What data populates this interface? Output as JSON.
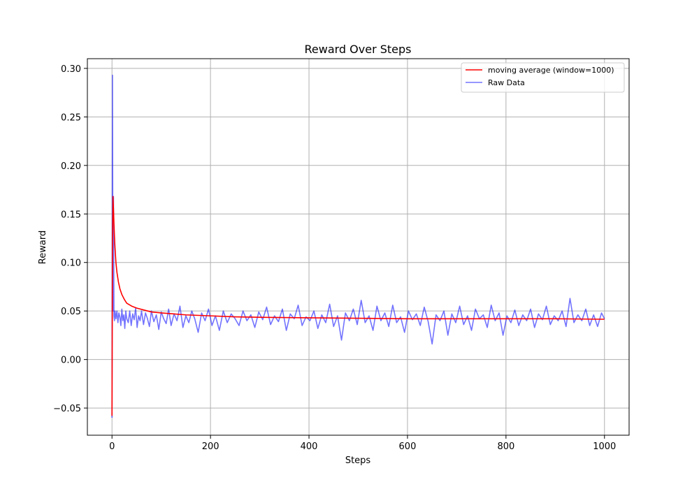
{
  "chart_data": {
    "type": "line",
    "title": "Reward Over Steps",
    "xlabel": "Steps",
    "ylabel": "Reward",
    "xlim": [
      -50,
      1050
    ],
    "ylim": [
      -0.078,
      0.31
    ],
    "xticks": [
      0,
      200,
      400,
      600,
      800,
      1000
    ],
    "yticks": [
      -0.05,
      0.0,
      0.05,
      0.1,
      0.15,
      0.2,
      0.25,
      0.3
    ],
    "xtick_labels": [
      "0",
      "200",
      "400",
      "600",
      "800",
      "1000"
    ],
    "ytick_labels": [
      "−0.05",
      "0.00",
      "0.05",
      "0.10",
      "0.15",
      "0.20",
      "0.25",
      "0.30"
    ],
    "grid": true,
    "legend_position": "top-right",
    "series": [
      {
        "name": "moving average (window=1000)",
        "color": "#ff0000",
        "x": [
          0,
          1,
          2,
          3,
          4,
          5,
          6,
          8,
          10,
          13,
          16,
          20,
          25,
          30,
          40,
          50,
          65,
          80,
          100,
          125,
          150,
          200,
          250,
          300,
          400,
          500,
          600,
          700,
          800,
          900,
          1000
        ],
        "y": [
          -0.058,
          0.12,
          0.168,
          0.155,
          0.14,
          0.127,
          0.116,
          0.1,
          0.09,
          0.08,
          0.073,
          0.067,
          0.062,
          0.058,
          0.055,
          0.053,
          0.051,
          0.049,
          0.048,
          0.047,
          0.046,
          0.045,
          0.044,
          0.0435,
          0.043,
          0.0425,
          0.042,
          0.042,
          0.042,
          0.042,
          0.0415
        ]
      },
      {
        "name": "Raw Data",
        "color": "#0000ff",
        "x": [
          0,
          1,
          2,
          3,
          4,
          5,
          6,
          7,
          8,
          10,
          12,
          14,
          16,
          18,
          20,
          22,
          24,
          26,
          28,
          30,
          33,
          36,
          39,
          42,
          45,
          48,
          51,
          54,
          57,
          60,
          64,
          68,
          72,
          76,
          80,
          85,
          90,
          95,
          100,
          105,
          110,
          115,
          120,
          126,
          132,
          138,
          144,
          150,
          156,
          162,
          168,
          175,
          182,
          189,
          196,
          203,
          210,
          218,
          226,
          234,
          242,
          250,
          258,
          266,
          274,
          282,
          290,
          298,
          306,
          314,
          322,
          330,
          338,
          346,
          354,
          362,
          370,
          378,
          386,
          394,
          402,
          410,
          418,
          426,
          434,
          442,
          450,
          458,
          466,
          474,
          482,
          490,
          498,
          506,
          514,
          522,
          530,
          538,
          546,
          554,
          562,
          570,
          578,
          586,
          594,
          602,
          610,
          618,
          626,
          634,
          642,
          650,
          658,
          666,
          674,
          682,
          690,
          698,
          706,
          714,
          722,
          730,
          738,
          746,
          754,
          762,
          770,
          778,
          786,
          794,
          802,
          810,
          818,
          826,
          834,
          842,
          850,
          858,
          866,
          874,
          882,
          890,
          898,
          906,
          914,
          922,
          930,
          938,
          946,
          954,
          962,
          970,
          978,
          986,
          994,
          1000
        ],
        "y": [
          -0.06,
          0.293,
          0.05,
          0.168,
          0.045,
          0.04,
          0.05,
          0.047,
          0.042,
          0.05,
          0.038,
          0.048,
          0.044,
          0.035,
          0.052,
          0.04,
          0.046,
          0.032,
          0.05,
          0.042,
          0.038,
          0.05,
          0.035,
          0.047,
          0.041,
          0.053,
          0.033,
          0.045,
          0.04,
          0.05,
          0.036,
          0.048,
          0.042,
          0.034,
          0.05,
          0.039,
          0.046,
          0.031,
          0.049,
          0.042,
          0.037,
          0.052,
          0.035,
          0.047,
          0.04,
          0.055,
          0.033,
          0.045,
          0.038,
          0.05,
          0.042,
          0.028,
          0.048,
          0.04,
          0.052,
          0.035,
          0.045,
          0.03,
          0.05,
          0.038,
          0.047,
          0.042,
          0.035,
          0.05,
          0.04,
          0.046,
          0.033,
          0.049,
          0.041,
          0.054,
          0.036,
          0.045,
          0.039,
          0.052,
          0.03,
          0.047,
          0.042,
          0.056,
          0.035,
          0.044,
          0.04,
          0.05,
          0.032,
          0.046,
          0.038,
          0.057,
          0.034,
          0.045,
          0.02,
          0.048,
          0.04,
          0.052,
          0.036,
          0.061,
          0.038,
          0.045,
          0.03,
          0.055,
          0.04,
          0.048,
          0.034,
          0.056,
          0.038,
          0.044,
          0.028,
          0.05,
          0.041,
          0.047,
          0.035,
          0.054,
          0.039,
          0.016,
          0.046,
          0.04,
          0.05,
          0.025,
          0.047,
          0.038,
          0.055,
          0.036,
          0.045,
          0.03,
          0.052,
          0.042,
          0.046,
          0.033,
          0.056,
          0.04,
          0.048,
          0.025,
          0.045,
          0.038,
          0.051,
          0.035,
          0.046,
          0.04,
          0.052,
          0.033,
          0.047,
          0.041,
          0.055,
          0.036,
          0.045,
          0.04,
          0.05,
          0.034,
          0.063,
          0.038,
          0.046,
          0.04,
          0.052,
          0.035,
          0.046,
          0.034,
          0.048,
          0.042
        ]
      }
    ]
  }
}
